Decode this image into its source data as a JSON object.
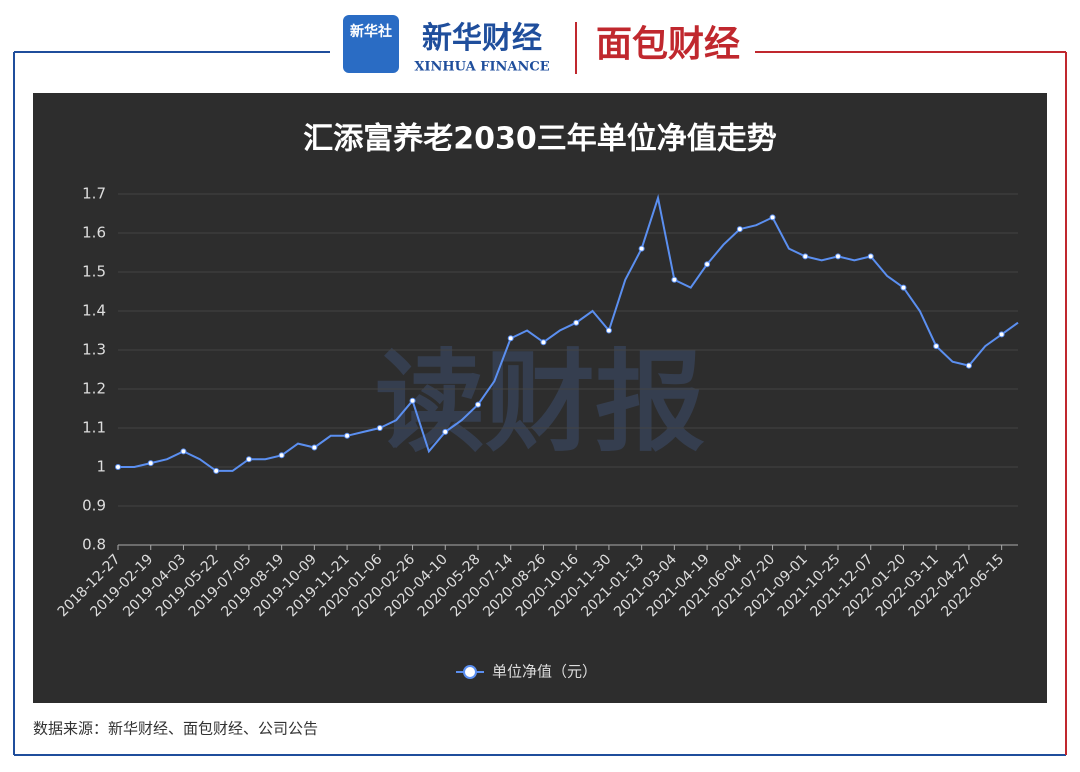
{
  "branding": {
    "xinhua_logo": "新华社",
    "xinhua_finance": "新华财经",
    "xinhua_finance_en": "XINHUA FINANCE",
    "mianbao": "面包财经"
  },
  "source": "数据来源：新华财经、面包财经、公司公告",
  "watermark": "读财报",
  "chart_data": {
    "type": "line",
    "title": "汇添富养老2030三年单位净值走势",
    "categories": [
      "2018-12-27",
      null,
      "2019-02-19",
      null,
      "2019-04-03",
      null,
      "2019-05-22",
      null,
      "2019-07-05",
      null,
      "2019-08-19",
      null,
      "2019-10-09",
      null,
      "2019-11-21",
      null,
      "2020-01-06",
      null,
      "2020-02-26",
      null,
      "2020-04-10",
      null,
      "2020-05-28",
      null,
      "2020-07-14",
      null,
      "2020-08-26",
      null,
      "2020-10-16",
      null,
      "2020-11-30",
      null,
      "2021-01-13",
      null,
      "2021-03-04",
      null,
      "2021-04-19",
      null,
      "2021-06-04",
      null,
      "2021-07-20",
      null,
      "2021-09-01",
      null,
      "2021-10-25",
      null,
      "2021-12-07",
      null,
      "2022-01-20",
      null,
      "2022-03-11",
      null,
      "2022-04-27",
      null,
      "2022-06-15",
      null
    ],
    "series": [
      {
        "name": "单位净值（元）",
        "color": "#5b8ff0",
        "values": [
          1.0,
          1.0,
          1.01,
          1.02,
          1.04,
          1.02,
          0.99,
          0.99,
          1.02,
          1.02,
          1.03,
          1.06,
          1.05,
          1.08,
          1.08,
          1.09,
          1.1,
          1.12,
          1.17,
          1.04,
          1.09,
          1.12,
          1.16,
          1.22,
          1.33,
          1.35,
          1.32,
          1.35,
          1.37,
          1.4,
          1.35,
          1.48,
          1.56,
          1.69,
          1.48,
          1.46,
          1.52,
          1.57,
          1.61,
          1.62,
          1.64,
          1.56,
          1.54,
          1.53,
          1.54,
          1.53,
          1.54,
          1.49,
          1.46,
          1.4,
          1.31,
          1.27,
          1.26,
          1.31,
          1.34,
          1.37
        ]
      }
    ],
    "ylim": [
      0.8,
      1.7
    ],
    "yticks": [
      0.8,
      0.9,
      1,
      1.1,
      1.2,
      1.3,
      1.4,
      1.5,
      1.6,
      1.7
    ],
    "grid": true
  }
}
